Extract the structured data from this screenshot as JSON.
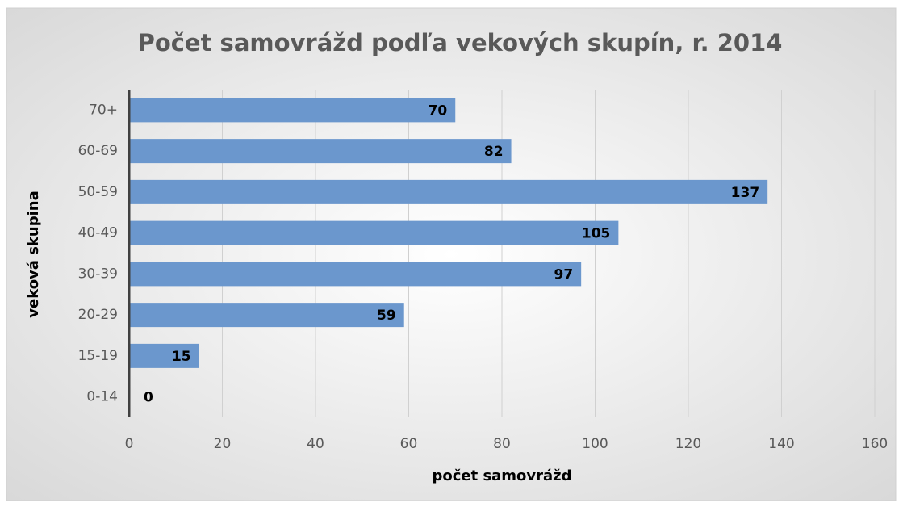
{
  "chart_data": {
    "type": "hbar",
    "title": "Počet samovrážd podľa vekových skupín, r. 2014",
    "xlabel": "počet samovrážd",
    "ylabel": "veková skupina",
    "categories": [
      "0-14",
      "15-19",
      "20-29",
      "30-39",
      "40-49",
      "50-59",
      "60-69",
      "70+"
    ],
    "values": [
      0,
      15,
      59,
      97,
      105,
      137,
      82,
      70
    ],
    "color": "#6b97cd",
    "xlim": [
      0,
      160
    ],
    "xticks": [
      0,
      20,
      40,
      60,
      80,
      100,
      120,
      140,
      160
    ],
    "grid": true
  }
}
